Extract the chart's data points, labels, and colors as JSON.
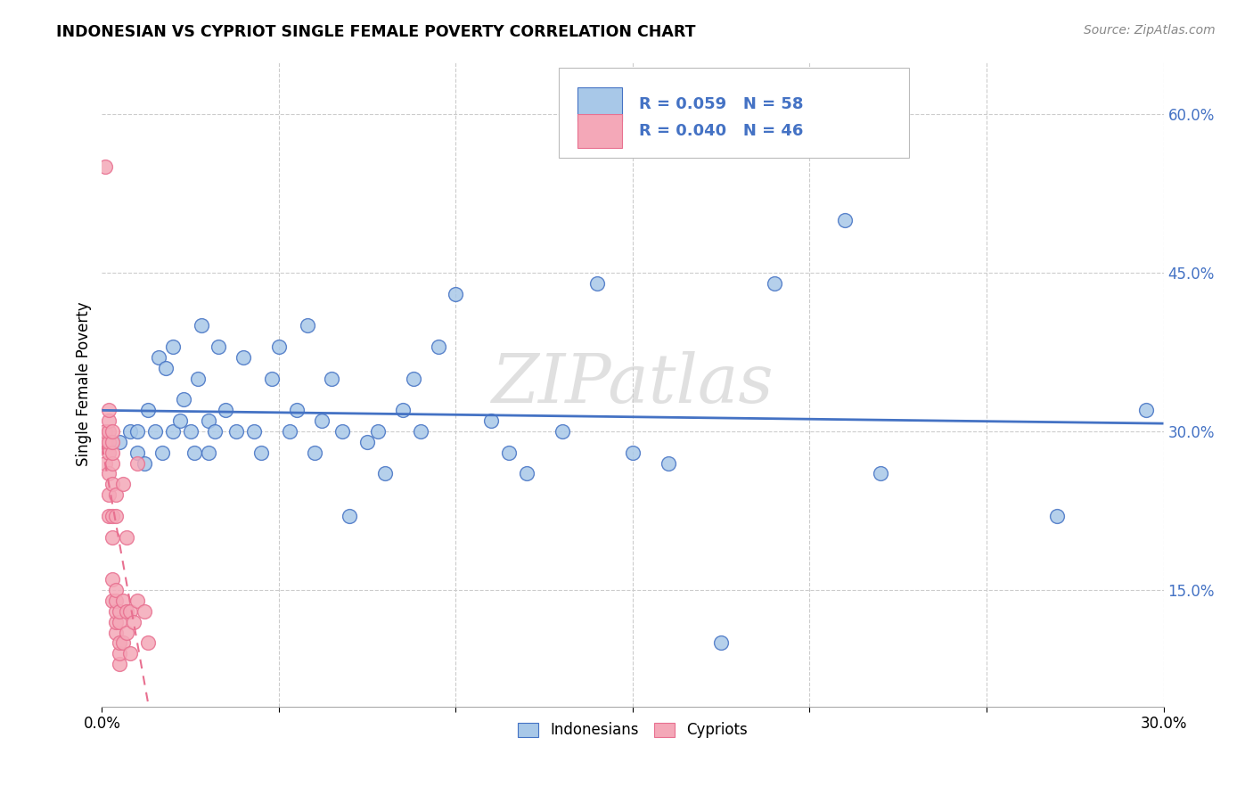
{
  "title": "INDONESIAN VS CYPRIOT SINGLE FEMALE POVERTY CORRELATION CHART",
  "source": "Source: ZipAtlas.com",
  "ylabel": "Single Female Poverty",
  "y_ticks": [
    0.15,
    0.3,
    0.45,
    0.6
  ],
  "y_tick_labels": [
    "15.0%",
    "30.0%",
    "45.0%",
    "60.0%"
  ],
  "xlim": [
    0.0,
    0.3
  ],
  "ylim": [
    0.04,
    0.65
  ],
  "indonesian_R": 0.059,
  "indonesian_N": 58,
  "cypriot_R": 0.04,
  "cypriot_N": 46,
  "blue_fill": "#A8C8E8",
  "blue_edge": "#4472C4",
  "pink_fill": "#F4A8B8",
  "pink_edge": "#E87090",
  "blue_line": "#4472C4",
  "pink_dash_line": "#E87090",
  "legend_text_color": "#4472C4",
  "watermark": "ZIPatlas",
  "indonesian_x": [
    0.005,
    0.008,
    0.01,
    0.01,
    0.012,
    0.013,
    0.015,
    0.016,
    0.017,
    0.018,
    0.02,
    0.02,
    0.022,
    0.023,
    0.025,
    0.026,
    0.027,
    0.028,
    0.03,
    0.03,
    0.032,
    0.033,
    0.035,
    0.038,
    0.04,
    0.043,
    0.045,
    0.048,
    0.05,
    0.053,
    0.055,
    0.058,
    0.06,
    0.062,
    0.065,
    0.068,
    0.07,
    0.075,
    0.078,
    0.08,
    0.085,
    0.088,
    0.09,
    0.095,
    0.1,
    0.11,
    0.115,
    0.12,
    0.13,
    0.14,
    0.15,
    0.16,
    0.175,
    0.19,
    0.21,
    0.22,
    0.27,
    0.295
  ],
  "indonesian_y": [
    0.29,
    0.3,
    0.28,
    0.3,
    0.27,
    0.32,
    0.3,
    0.37,
    0.28,
    0.36,
    0.3,
    0.38,
    0.31,
    0.33,
    0.3,
    0.28,
    0.35,
    0.4,
    0.28,
    0.31,
    0.3,
    0.38,
    0.32,
    0.3,
    0.37,
    0.3,
    0.28,
    0.35,
    0.38,
    0.3,
    0.32,
    0.4,
    0.28,
    0.31,
    0.35,
    0.3,
    0.22,
    0.29,
    0.3,
    0.26,
    0.32,
    0.35,
    0.3,
    0.38,
    0.43,
    0.31,
    0.28,
    0.26,
    0.3,
    0.44,
    0.28,
    0.27,
    0.1,
    0.44,
    0.5,
    0.26,
    0.22,
    0.32
  ],
  "cypriot_x": [
    0.001,
    0.001,
    0.001,
    0.002,
    0.002,
    0.002,
    0.002,
    0.002,
    0.002,
    0.002,
    0.002,
    0.003,
    0.003,
    0.003,
    0.003,
    0.003,
    0.003,
    0.003,
    0.003,
    0.003,
    0.004,
    0.004,
    0.004,
    0.004,
    0.004,
    0.004,
    0.004,
    0.005,
    0.005,
    0.005,
    0.005,
    0.005,
    0.006,
    0.006,
    0.006,
    0.007,
    0.007,
    0.007,
    0.008,
    0.008,
    0.009,
    0.01,
    0.01,
    0.012,
    0.013,
    0.001
  ],
  "cypriot_y": [
    0.27,
    0.29,
    0.3,
    0.22,
    0.24,
    0.26,
    0.28,
    0.29,
    0.3,
    0.31,
    0.32,
    0.14,
    0.16,
    0.2,
    0.22,
    0.25,
    0.27,
    0.28,
    0.29,
    0.3,
    0.11,
    0.12,
    0.13,
    0.14,
    0.15,
    0.22,
    0.24,
    0.08,
    0.09,
    0.1,
    0.12,
    0.13,
    0.1,
    0.14,
    0.25,
    0.11,
    0.13,
    0.2,
    0.09,
    0.13,
    0.12,
    0.14,
    0.27,
    0.13,
    0.1,
    0.55
  ]
}
